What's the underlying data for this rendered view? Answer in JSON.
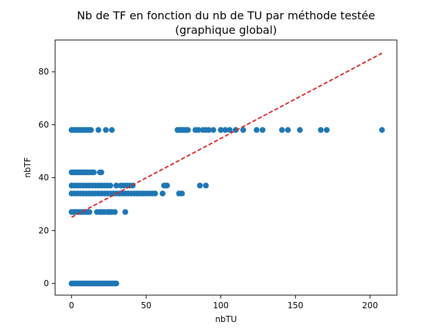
{
  "chart_data": {
    "type": "scatter",
    "title_line1": "Nb de TF en fonction du nb de TU par méthode testée",
    "title_line2": "(graphique global)",
    "xlabel": "nbTU",
    "ylabel": "nbTF",
    "xlim": [
      -11,
      218
    ],
    "ylim": [
      -4.4,
      92
    ],
    "x_ticks": [
      0,
      50,
      100,
      150,
      200
    ],
    "y_ticks": [
      0,
      20,
      40,
      60,
      80
    ],
    "grid": false,
    "point_color": "#1f77b4",
    "trend_color": "#d62728",
    "trendline": {
      "x": [
        0,
        208
      ],
      "y": [
        25,
        87
      ]
    },
    "points": [
      {
        "x": 0,
        "y": 0
      },
      {
        "x": 1,
        "y": 0
      },
      {
        "x": 2,
        "y": 0
      },
      {
        "x": 3,
        "y": 0
      },
      {
        "x": 4,
        "y": 0
      },
      {
        "x": 5,
        "y": 0
      },
      {
        "x": 6,
        "y": 0
      },
      {
        "x": 7,
        "y": 0
      },
      {
        "x": 8,
        "y": 0
      },
      {
        "x": 9,
        "y": 0
      },
      {
        "x": 10,
        "y": 0
      },
      {
        "x": 11,
        "y": 0
      },
      {
        "x": 12,
        "y": 0
      },
      {
        "x": 13,
        "y": 0
      },
      {
        "x": 14,
        "y": 0
      },
      {
        "x": 15,
        "y": 0
      },
      {
        "x": 16,
        "y": 0
      },
      {
        "x": 17,
        "y": 0
      },
      {
        "x": 18,
        "y": 0
      },
      {
        "x": 19,
        "y": 0
      },
      {
        "x": 20,
        "y": 0
      },
      {
        "x": 21,
        "y": 0
      },
      {
        "x": 22,
        "y": 0
      },
      {
        "x": 23,
        "y": 0
      },
      {
        "x": 24,
        "y": 0
      },
      {
        "x": 25,
        "y": 0
      },
      {
        "x": 26,
        "y": 0
      },
      {
        "x": 27,
        "y": 0
      },
      {
        "x": 28,
        "y": 0
      },
      {
        "x": 29,
        "y": 0
      },
      {
        "x": 30,
        "y": 0
      },
      {
        "x": 0,
        "y": 27
      },
      {
        "x": 1,
        "y": 27
      },
      {
        "x": 2,
        "y": 27
      },
      {
        "x": 3,
        "y": 27
      },
      {
        "x": 4,
        "y": 27
      },
      {
        "x": 5,
        "y": 27
      },
      {
        "x": 6,
        "y": 27
      },
      {
        "x": 7,
        "y": 27
      },
      {
        "x": 8,
        "y": 27
      },
      {
        "x": 9,
        "y": 27
      },
      {
        "x": 10,
        "y": 27
      },
      {
        "x": 11,
        "y": 27
      },
      {
        "x": 12,
        "y": 27
      },
      {
        "x": 17,
        "y": 27
      },
      {
        "x": 19,
        "y": 27
      },
      {
        "x": 20,
        "y": 27
      },
      {
        "x": 21,
        "y": 27
      },
      {
        "x": 22,
        "y": 27
      },
      {
        "x": 24,
        "y": 27
      },
      {
        "x": 25,
        "y": 27
      },
      {
        "x": 26,
        "y": 27
      },
      {
        "x": 27,
        "y": 27
      },
      {
        "x": 29,
        "y": 27
      },
      {
        "x": 36,
        "y": 27
      },
      {
        "x": 0,
        "y": 34
      },
      {
        "x": 2,
        "y": 34
      },
      {
        "x": 4,
        "y": 34
      },
      {
        "x": 6,
        "y": 34
      },
      {
        "x": 8,
        "y": 34
      },
      {
        "x": 10,
        "y": 34
      },
      {
        "x": 12,
        "y": 34
      },
      {
        "x": 14,
        "y": 34
      },
      {
        "x": 16,
        "y": 34
      },
      {
        "x": 18,
        "y": 34
      },
      {
        "x": 20,
        "y": 34
      },
      {
        "x": 22,
        "y": 34
      },
      {
        "x": 24,
        "y": 34
      },
      {
        "x": 26,
        "y": 34
      },
      {
        "x": 28,
        "y": 34
      },
      {
        "x": 30,
        "y": 34
      },
      {
        "x": 32,
        "y": 34
      },
      {
        "x": 34,
        "y": 34
      },
      {
        "x": 36,
        "y": 34
      },
      {
        "x": 38,
        "y": 34
      },
      {
        "x": 40,
        "y": 34
      },
      {
        "x": 42,
        "y": 34
      },
      {
        "x": 44,
        "y": 34
      },
      {
        "x": 46,
        "y": 34
      },
      {
        "x": 48,
        "y": 34
      },
      {
        "x": 50,
        "y": 34
      },
      {
        "x": 52,
        "y": 34
      },
      {
        "x": 54,
        "y": 34
      },
      {
        "x": 56,
        "y": 34
      },
      {
        "x": 61,
        "y": 34
      },
      {
        "x": 72,
        "y": 34
      },
      {
        "x": 74,
        "y": 34
      },
      {
        "x": 0,
        "y": 37
      },
      {
        "x": 2,
        "y": 37
      },
      {
        "x": 4,
        "y": 37
      },
      {
        "x": 6,
        "y": 37
      },
      {
        "x": 8,
        "y": 37
      },
      {
        "x": 10,
        "y": 37
      },
      {
        "x": 12,
        "y": 37
      },
      {
        "x": 14,
        "y": 37
      },
      {
        "x": 16,
        "y": 37
      },
      {
        "x": 18,
        "y": 37
      },
      {
        "x": 20,
        "y": 37
      },
      {
        "x": 22,
        "y": 37
      },
      {
        "x": 24,
        "y": 37
      },
      {
        "x": 26,
        "y": 37
      },
      {
        "x": 30,
        "y": 37
      },
      {
        "x": 33,
        "y": 37
      },
      {
        "x": 35,
        "y": 37
      },
      {
        "x": 37,
        "y": 37
      },
      {
        "x": 39,
        "y": 37
      },
      {
        "x": 41,
        "y": 37
      },
      {
        "x": 62,
        "y": 37
      },
      {
        "x": 63,
        "y": 37
      },
      {
        "x": 64,
        "y": 37
      },
      {
        "x": 86,
        "y": 37
      },
      {
        "x": 90,
        "y": 37
      },
      {
        "x": 0,
        "y": 42
      },
      {
        "x": 1,
        "y": 42
      },
      {
        "x": 2,
        "y": 42
      },
      {
        "x": 3,
        "y": 42
      },
      {
        "x": 4,
        "y": 42
      },
      {
        "x": 5,
        "y": 42
      },
      {
        "x": 6,
        "y": 42
      },
      {
        "x": 7,
        "y": 42
      },
      {
        "x": 8,
        "y": 42
      },
      {
        "x": 9,
        "y": 42
      },
      {
        "x": 10,
        "y": 42
      },
      {
        "x": 11,
        "y": 42
      },
      {
        "x": 12,
        "y": 42
      },
      {
        "x": 13,
        "y": 42
      },
      {
        "x": 14,
        "y": 42
      },
      {
        "x": 15,
        "y": 42
      },
      {
        "x": 19,
        "y": 42
      },
      {
        "x": 20,
        "y": 42
      },
      {
        "x": 0,
        "y": 58
      },
      {
        "x": 1,
        "y": 58
      },
      {
        "x": 2,
        "y": 58
      },
      {
        "x": 3,
        "y": 58
      },
      {
        "x": 4,
        "y": 58
      },
      {
        "x": 5,
        "y": 58
      },
      {
        "x": 6,
        "y": 58
      },
      {
        "x": 7,
        "y": 58
      },
      {
        "x": 8,
        "y": 58
      },
      {
        "x": 9,
        "y": 58
      },
      {
        "x": 10,
        "y": 58
      },
      {
        "x": 11,
        "y": 58
      },
      {
        "x": 12,
        "y": 58
      },
      {
        "x": 13,
        "y": 58
      },
      {
        "x": 18,
        "y": 58
      },
      {
        "x": 23,
        "y": 58
      },
      {
        "x": 27,
        "y": 58
      },
      {
        "x": 71,
        "y": 58
      },
      {
        "x": 72,
        "y": 58
      },
      {
        "x": 73,
        "y": 58
      },
      {
        "x": 74,
        "y": 58
      },
      {
        "x": 75,
        "y": 58
      },
      {
        "x": 76,
        "y": 58
      },
      {
        "x": 77,
        "y": 58
      },
      {
        "x": 78,
        "y": 58
      },
      {
        "x": 83,
        "y": 58
      },
      {
        "x": 85,
        "y": 58
      },
      {
        "x": 88,
        "y": 58
      },
      {
        "x": 90,
        "y": 58
      },
      {
        "x": 92,
        "y": 58
      },
      {
        "x": 95,
        "y": 58
      },
      {
        "x": 100,
        "y": 58
      },
      {
        "x": 103,
        "y": 58
      },
      {
        "x": 106,
        "y": 58
      },
      {
        "x": 110,
        "y": 58
      },
      {
        "x": 115,
        "y": 58
      },
      {
        "x": 124,
        "y": 58
      },
      {
        "x": 128,
        "y": 58
      },
      {
        "x": 141,
        "y": 58
      },
      {
        "x": 145,
        "y": 58
      },
      {
        "x": 153,
        "y": 58
      },
      {
        "x": 167,
        "y": 58
      },
      {
        "x": 171,
        "y": 58
      },
      {
        "x": 208,
        "y": 58
      }
    ]
  }
}
